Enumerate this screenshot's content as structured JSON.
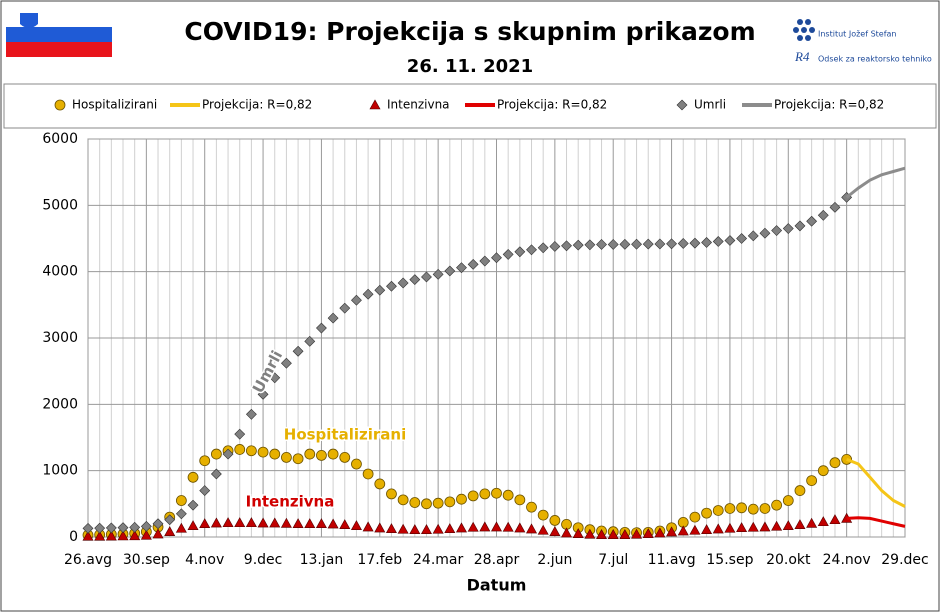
{
  "chart_data": {
    "type": "line",
    "title": "COVID19: Projekcija  s skupnim prikazom",
    "subtitle": "26. 11. 2021",
    "x_label": "Datum",
    "annotations": [
      "Umrli",
      "Hospitalizirani",
      "Intenzivna"
    ],
    "categories": [
      "26.avg",
      null,
      null,
      null,
      null,
      "30.sep",
      null,
      null,
      null,
      null,
      "4.nov",
      null,
      null,
      null,
      null,
      "9.dec",
      null,
      null,
      null,
      null,
      "13.jan",
      null,
      null,
      null,
      null,
      "17.feb",
      null,
      null,
      null,
      null,
      "24.mar",
      null,
      null,
      null,
      null,
      "28.apr",
      null,
      null,
      null,
      null,
      "2.jun",
      null,
      null,
      null,
      null,
      "7.jul",
      null,
      null,
      null,
      null,
      "11.avg",
      null,
      null,
      null,
      null,
      "15.sep",
      null,
      null,
      null,
      null,
      "20.okt",
      null,
      null,
      null,
      null,
      "24.nov",
      null,
      null,
      null,
      null,
      "29.dec"
    ],
    "ylim": [
      0,
      6000
    ],
    "yticks": [
      0,
      1000,
      2000,
      3000,
      4000,
      5000,
      6000
    ],
    "grid": true,
    "series": [
      {
        "name": "Hospitalizirani",
        "marker": "circle",
        "color": "#e6b000",
        "values": [
          30,
          35,
          40,
          45,
          55,
          80,
          150,
          300,
          550,
          900,
          1150,
          1250,
          1300,
          1320,
          1300,
          1280,
          1250,
          1200,
          1180,
          1250,
          1230,
          1250,
          1200,
          1100,
          950,
          800,
          650,
          560,
          520,
          500,
          510,
          530,
          570,
          620,
          650,
          660,
          630,
          560,
          450,
          330,
          250,
          190,
          140,
          110,
          90,
          80,
          70,
          65,
          70,
          90,
          140,
          220,
          300,
          360,
          400,
          430,
          440,
          420,
          430,
          480,
          550,
          700,
          850,
          1000,
          1120,
          1170,
          null,
          null,
          null,
          null,
          null
        ]
      },
      {
        "name": "Projekcija: R=0,82",
        "marker": "line",
        "color": "#f5c518",
        "values": [
          null,
          null,
          null,
          null,
          null,
          null,
          null,
          null,
          null,
          null,
          null,
          null,
          null,
          null,
          null,
          null,
          null,
          null,
          null,
          null,
          null,
          null,
          null,
          null,
          null,
          null,
          null,
          null,
          null,
          null,
          null,
          null,
          null,
          null,
          null,
          null,
          null,
          null,
          null,
          null,
          null,
          null,
          null,
          null,
          null,
          null,
          null,
          null,
          null,
          null,
          null,
          null,
          null,
          null,
          null,
          null,
          null,
          null,
          null,
          null,
          null,
          null,
          null,
          null,
          null,
          1170,
          1100,
          900,
          700,
          550,
          460
        ]
      },
      {
        "name": "Intenzivna",
        "marker": "triangle",
        "color": "#c00000",
        "values": [
          10,
          10,
          12,
          15,
          18,
          25,
          45,
          80,
          130,
          170,
          200,
          210,
          215,
          215,
          215,
          210,
          210,
          205,
          200,
          200,
          200,
          195,
          185,
          170,
          150,
          135,
          125,
          115,
          110,
          110,
          115,
          125,
          135,
          145,
          150,
          150,
          145,
          135,
          120,
          100,
          80,
          60,
          50,
          40,
          35,
          35,
          35,
          40,
          50,
          60,
          75,
          90,
          100,
          110,
          120,
          130,
          140,
          145,
          150,
          160,
          170,
          185,
          205,
          230,
          260,
          280,
          null,
          null,
          null,
          null,
          null
        ]
      },
      {
        "name": "Projekcija: R=0,82",
        "marker": "line",
        "color": "#e00000",
        "values": [
          null,
          null,
          null,
          null,
          null,
          null,
          null,
          null,
          null,
          null,
          null,
          null,
          null,
          null,
          null,
          null,
          null,
          null,
          null,
          null,
          null,
          null,
          null,
          null,
          null,
          null,
          null,
          null,
          null,
          null,
          null,
          null,
          null,
          null,
          null,
          null,
          null,
          null,
          null,
          null,
          null,
          null,
          null,
          null,
          null,
          null,
          null,
          null,
          null,
          null,
          null,
          null,
          null,
          null,
          null,
          null,
          null,
          null,
          null,
          null,
          null,
          null,
          null,
          null,
          null,
          280,
          290,
          280,
          240,
          200,
          160
        ]
      },
      {
        "name": "Umrli",
        "marker": "diamond",
        "color": "#808080",
        "values": [
          130,
          133,
          137,
          141,
          146,
          160,
          200,
          260,
          350,
          480,
          700,
          950,
          1250,
          1550,
          1850,
          2150,
          2400,
          2620,
          2800,
          2950,
          3150,
          3300,
          3450,
          3570,
          3660,
          3720,
          3780,
          3830,
          3880,
          3920,
          3960,
          4010,
          4060,
          4110,
          4160,
          4210,
          4260,
          4300,
          4330,
          4360,
          4380,
          4390,
          4400,
          4405,
          4410,
          4410,
          4412,
          4414,
          4416,
          4418,
          4420,
          4425,
          4430,
          4440,
          4455,
          4470,
          4500,
          4540,
          4580,
          4620,
          4650,
          4690,
          4760,
          4850,
          4970,
          5120,
          null,
          null,
          null,
          null,
          null
        ]
      },
      {
        "name": "Projekcija: R=0,82",
        "marker": "line",
        "color": "#8c8c8c",
        "values": [
          null,
          null,
          null,
          null,
          null,
          null,
          null,
          null,
          null,
          null,
          null,
          null,
          null,
          null,
          null,
          null,
          null,
          null,
          null,
          null,
          null,
          null,
          null,
          null,
          null,
          null,
          null,
          null,
          null,
          null,
          null,
          null,
          null,
          null,
          null,
          null,
          null,
          null,
          null,
          null,
          null,
          null,
          null,
          null,
          null,
          null,
          null,
          null,
          null,
          null,
          null,
          null,
          null,
          null,
          null,
          null,
          null,
          null,
          null,
          null,
          null,
          null,
          null,
          null,
          null,
          5120,
          5260,
          5380,
          5460,
          5510,
          5560
        ]
      }
    ]
  },
  "header": {
    "institute": "Institut Jožef Stefan",
    "mark": "R4",
    "department": "Odsek za reaktorsko tehniko"
  }
}
